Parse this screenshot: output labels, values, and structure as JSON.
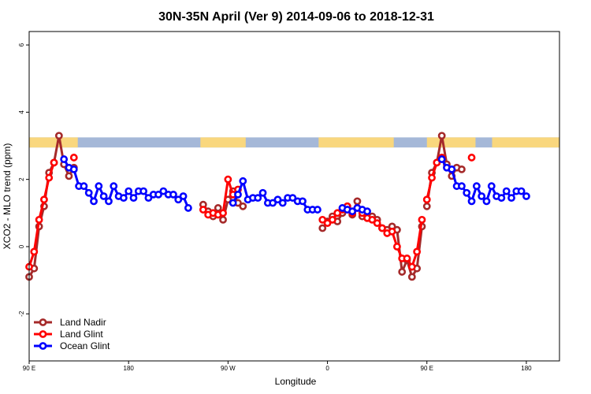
{
  "chart_data": {
    "type": "line",
    "title": "30N-35N April (Ver 9)   2014-09-06 to 2018-12-31",
    "xlabel": "Longitude",
    "ylabel": "XCO2 - MLO trend (ppm)",
    "xlim": [
      0,
      480
    ],
    "ylim": [
      -3.4,
      6.4
    ],
    "x_ticks": [
      {
        "value": 0,
        "label": "90 E"
      },
      {
        "value": 90,
        "label": "180"
      },
      {
        "value": 180,
        "label": "90 W"
      },
      {
        "value": 270,
        "label": "0"
      },
      {
        "value": 360,
        "label": "90 E"
      },
      {
        "value": 450,
        "label": "180"
      }
    ],
    "y_ticks": [
      {
        "value": -2,
        "label": "-2"
      },
      {
        "value": 0,
        "label": "0"
      },
      {
        "value": 2,
        "label": "2"
      },
      {
        "value": 4,
        "label": "4"
      },
      {
        "value": 6,
        "label": "6"
      }
    ],
    "grid": false,
    "legend_position": "bottom-left",
    "land_ocean_band": {
      "y_range": [
        2.95,
        3.25
      ],
      "ocean_color": "#a5b8d8",
      "land_color": "#f9d77e",
      "land_segments": [
        [
          0,
          44
        ],
        [
          155,
          196
        ],
        [
          262,
          330
        ],
        [
          360,
          404
        ],
        [
          419,
          480
        ]
      ]
    },
    "series": [
      {
        "name": "Land Nadir",
        "color": "#a52a2a",
        "segments": [
          {
            "x": [
              0,
              4.5,
              9,
              13.5,
              18,
              22.5,
              27,
              31.5,
              36,
              40.5
            ],
            "y": [
              -0.9,
              -0.65,
              0.6,
              1.2,
              2.2,
              2.5,
              3.3,
              2.45,
              2.1,
              2.35
            ]
          },
          {
            "x": [
              157.5,
              162,
              166.5,
              171,
              175.5,
              180,
              184.5,
              189,
              193.5
            ],
            "y": [
              1.25,
              1.05,
              0.9,
              1.15,
              0.8,
              1.4,
              1.65,
              1.3,
              1.2
            ]
          },
          {
            "x": [
              265.5,
              270,
              274.5,
              279,
              283.5,
              288,
              292.5,
              297,
              301.5,
              306,
              310.5,
              315,
              319.5,
              324,
              328.5,
              333,
              337.5,
              342,
              346.5,
              351,
              355.5
            ],
            "y": [
              0.55,
              0.75,
              0.9,
              0.75,
              1.0,
              1.2,
              0.95,
              1.35,
              0.9,
              0.85,
              0.9,
              0.8,
              0.55,
              0.5,
              0.6,
              0.5,
              -0.75,
              -0.4,
              -0.9,
              -0.65,
              0.6
            ]
          },
          {
            "x": [
              360,
              364.5,
              369,
              373.5,
              378,
              382.5,
              387,
              391.5
            ],
            "y": [
              1.2,
              2.2,
              2.5,
              3.3,
              2.45,
              2.1,
              2.35,
              2.3
            ]
          }
        ]
      },
      {
        "name": "Land Glint",
        "color": "#ff0000",
        "segments": [
          {
            "x": [
              0,
              4.5,
              9,
              13.5,
              18,
              22.5
            ],
            "y": [
              -0.6,
              -0.15,
              0.8,
              1.4,
              2.05,
              2.5
            ]
          },
          {
            "x": [
              157.5,
              162,
              166.5,
              171,
              175.5,
              180,
              184.5,
              189
            ],
            "y": [
              1.1,
              0.95,
              1.0,
              0.95,
              1.0,
              2.0,
              1.55,
              1.7
            ]
          },
          {
            "x": [
              265.5,
              270,
              274.5,
              279,
              283.5,
              288,
              292.5,
              297,
              301.5,
              306,
              310.5,
              315,
              319.5,
              324,
              328.5,
              333,
              337.5,
              342,
              346.5,
              351,
              355.5
            ],
            "y": [
              0.8,
              0.7,
              0.8,
              1.0,
              1.1,
              1.2,
              1.0,
              1.15,
              1.0,
              0.85,
              0.8,
              0.7,
              0.55,
              0.4,
              0.45,
              0.0,
              -0.35,
              -0.35,
              -0.6,
              -0.15,
              0.8
            ]
          },
          {
            "x": [
              360,
              364.5,
              369,
              373.5
            ],
            "y": [
              1.4,
              2.05,
              2.5,
              2.65
            ]
          }
        ],
        "isolated": [
          {
            "x": 40.5,
            "y": 2.65
          },
          {
            "x": 400.5,
            "y": 2.65
          }
        ]
      },
      {
        "name": "Ocean Glint",
        "color": "#0000ff",
        "segments": [
          {
            "x": [
              31.5,
              36,
              40.5,
              45,
              49.5,
              54,
              58.5,
              63,
              67.5,
              72,
              76.5,
              81,
              85.5,
              90,
              94.5,
              99,
              103.5,
              108,
              112.5,
              117,
              121.5,
              126,
              130.5,
              135,
              139.5,
              144,
              148.5,
              153
            ],
            "y": [
              2.6,
              2.35,
              2.3,
              1.8,
              1.8,
              1.6,
              1.35,
              1.8,
              1.5,
              1.35,
              1.8,
              1.5,
              1.45,
              1.65,
              1.45,
              1.65,
              1.65,
              1.45,
              1.55,
              1.55,
              1.65,
              1.55,
              1.55,
              1.4,
              1.5,
              1.15,
              null,
              null
            ]
          },
          {
            "x": [
              184.5,
              189,
              193.5,
              198,
              202.5,
              207,
              211.5,
              216,
              220.5,
              225,
              229.5,
              234,
              238.5,
              243,
              247.5,
              252,
              256.5,
              261
            ],
            "y": [
              1.3,
              1.55,
              1.95,
              1.4,
              1.45,
              1.45,
              1.6,
              1.3,
              1.3,
              1.4,
              1.3,
              1.45,
              1.45,
              1.35,
              1.35,
              1.1,
              1.1,
              1.1
            ]
          },
          {
            "x": [
              283.5,
              288,
              292.5,
              297,
              301.5,
              306
            ],
            "y": [
              1.15,
              1.1,
              1.05,
              1.15,
              1.1,
              1.05
            ]
          },
          {
            "x": [
              373.5,
              378,
              382.5,
              387,
              391.5,
              396,
              400.5,
              405,
              409.5,
              414,
              418.5,
              423,
              427.5,
              432,
              436.5,
              441,
              445.5,
              450
            ],
            "y": [
              2.6,
              2.35,
              2.3,
              1.8,
              1.8,
              1.6,
              1.35,
              1.8,
              1.5,
              1.35,
              1.8,
              1.5,
              1.45,
              1.65,
              1.45,
              1.65,
              1.65,
              1.5
            ]
          }
        ]
      }
    ]
  }
}
